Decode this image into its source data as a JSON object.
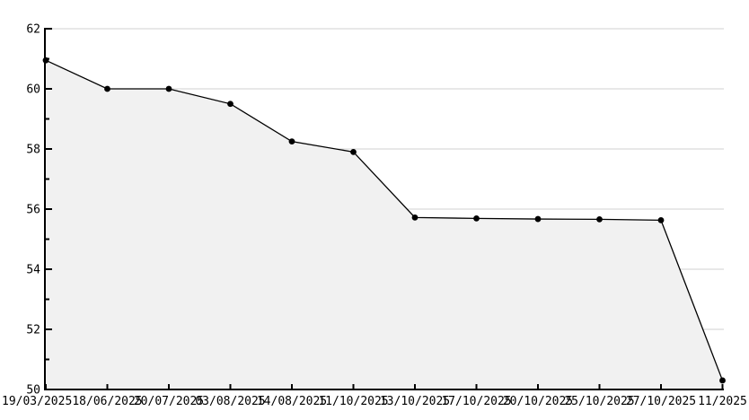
{
  "chart_data": {
    "type": "area",
    "title": "",
    "xlabel": "",
    "ylabel": "",
    "x_labels": [
      "19/03/2025",
      "18/06/2025",
      "20/07/2025",
      "03/08/2025",
      "14/08/2025",
      "11/10/2025",
      "13/10/2025",
      "17/10/2025",
      "20/10/2025",
      "25/10/2025",
      "27/10/2025",
      "11/2025"
    ],
    "values": [
      60.95,
      60.0,
      60.0,
      59.5,
      58.25,
      57.9,
      55.72,
      55.69,
      55.67,
      55.66,
      55.63,
      50.3
    ],
    "ylim": [
      50,
      62
    ],
    "y_major_step": 2,
    "y_minor_step": 1,
    "y_tick_labels": [
      "50",
      "52",
      "54",
      "56",
      "58",
      "60",
      "62"
    ],
    "grid": "horizontal-major",
    "legend": "none",
    "marker": "filled-dot",
    "colors": {
      "line": "#000000",
      "marker": "#000000",
      "fill": "#f1f1f1",
      "grid": "#d0d0d0",
      "axis": "#000000",
      "text": "#000000",
      "background": "#ffffff"
    }
  }
}
